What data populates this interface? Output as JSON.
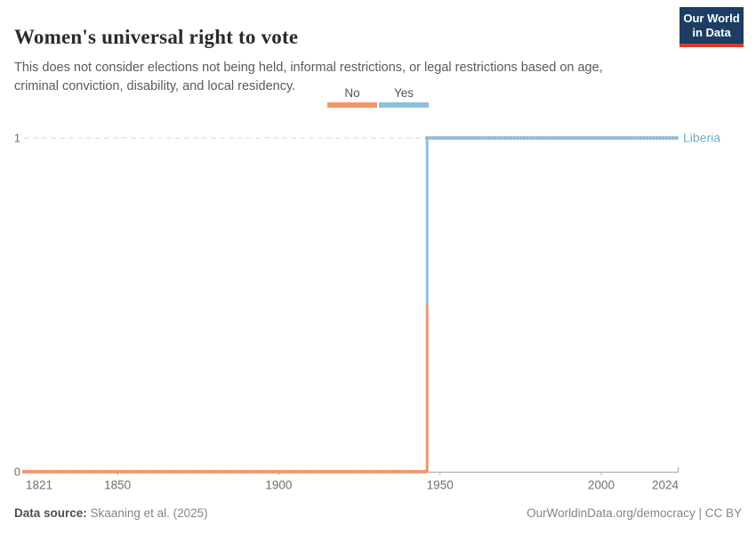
{
  "header": {
    "title": "Women's universal right to vote",
    "subtitle": "This does not consider elections not being held, informal restrictions, or legal restrictions based on age, criminal conviction, disability, and local residency.",
    "logo": {
      "line1": "Our World",
      "line2": "in Data",
      "bg_color": "#1D3D63",
      "bar_color": "#D93A2B"
    }
  },
  "legend": {
    "items": [
      {
        "label": "No",
        "color": "#F0976C"
      },
      {
        "label": "Yes",
        "color": "#8FBEDA"
      }
    ]
  },
  "chart_data": {
    "type": "line",
    "title": "Women's universal right to vote",
    "entity": "Liberia",
    "entity_label_color": "#77A9C7",
    "x": {
      "min": 1821,
      "max": 2024,
      "ticks": [
        1821,
        1850,
        1900,
        1950,
        2000,
        2024
      ]
    },
    "y": {
      "min": 0,
      "max": 1,
      "ticks": [
        0,
        1
      ]
    },
    "gridline_at_y": 1,
    "grid": "dashed horizontal gridline at y=1 only",
    "legend_position": "top-center",
    "series": [
      {
        "name": "Liberia",
        "segments": [
          {
            "label": "No",
            "value": 0,
            "from_year": 1821,
            "to_year": 1945,
            "color": "#F0976C"
          },
          {
            "label": "Yes",
            "value": 1,
            "from_year": 1946,
            "to_year": 2024,
            "color": "#8FBEDA"
          }
        ]
      }
    ],
    "step_year": 1946,
    "axis_color": "#A6A6A6",
    "tick_label_color": "#6E6E6E",
    "gridline_color": "#D9D9D9"
  },
  "footer": {
    "source_label": "Data source:",
    "source_value": "Skaaning et al. (2025)",
    "right_text": "OurWorldinData.org/democracy | CC BY"
  }
}
